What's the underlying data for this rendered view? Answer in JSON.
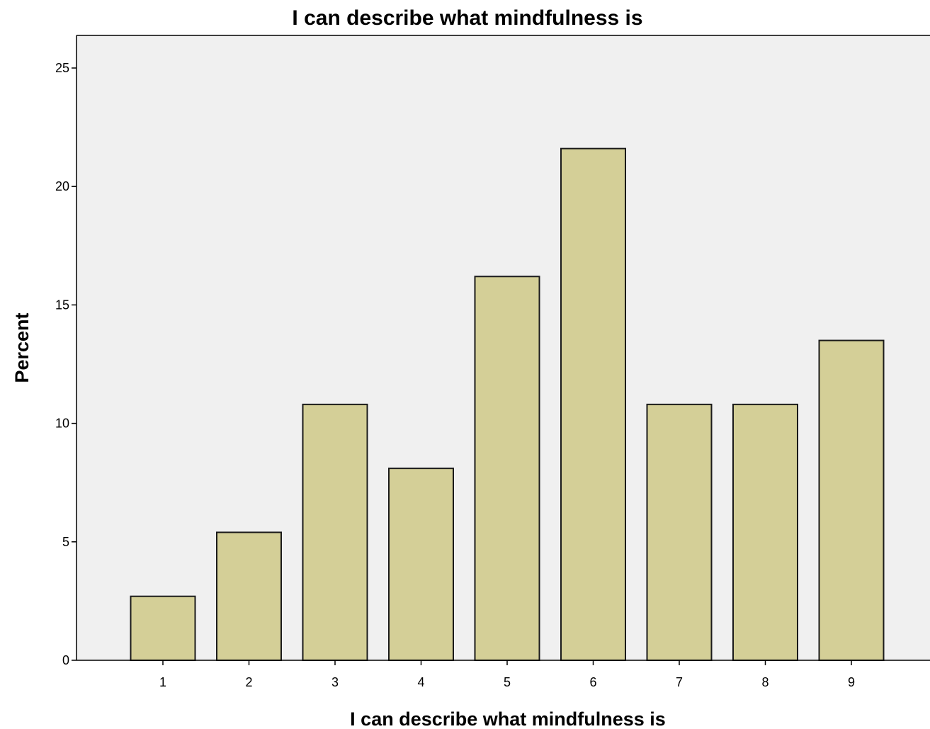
{
  "chart_data": {
    "type": "bar",
    "title": "I can describe what mindfulness is",
    "xlabel": "I can describe what mindfulness is",
    "ylabel": "Percent",
    "categories": [
      "1",
      "2",
      "3",
      "4",
      "5",
      "6",
      "7",
      "8",
      "9"
    ],
    "values": [
      2.7,
      5.4,
      10.8,
      8.1,
      16.2,
      21.6,
      10.8,
      10.8,
      13.5
    ],
    "ylim": [
      0,
      26
    ],
    "yticks": [
      "0",
      "5",
      "10",
      "15",
      "20",
      "25"
    ],
    "grid": false,
    "legend": "none"
  },
  "colors": {
    "bar_fill": "#d4cf97",
    "bar_stroke": "#1a1a1a",
    "plot_background": "#f0f0f0",
    "axis": "#000000"
  }
}
